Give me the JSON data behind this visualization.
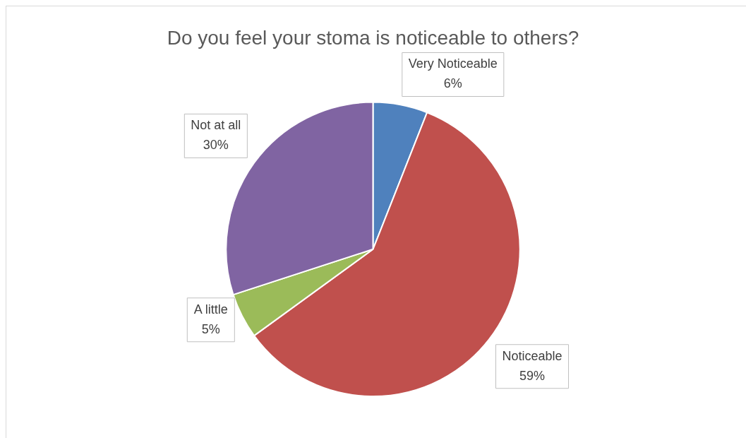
{
  "chart_data": {
    "type": "pie",
    "title": "Do you feel your stoma is noticeable to others?",
    "categories": [
      "Very Noticeable",
      "Noticeable",
      "A little",
      "Not at all"
    ],
    "values": [
      6,
      59,
      5,
      30
    ],
    "colors": [
      "#4f81bd",
      "#c0504d",
      "#9bbb59",
      "#8064a2"
    ],
    "value_labels": [
      "6%",
      "59%",
      "5%",
      "30%"
    ],
    "legend": false
  }
}
